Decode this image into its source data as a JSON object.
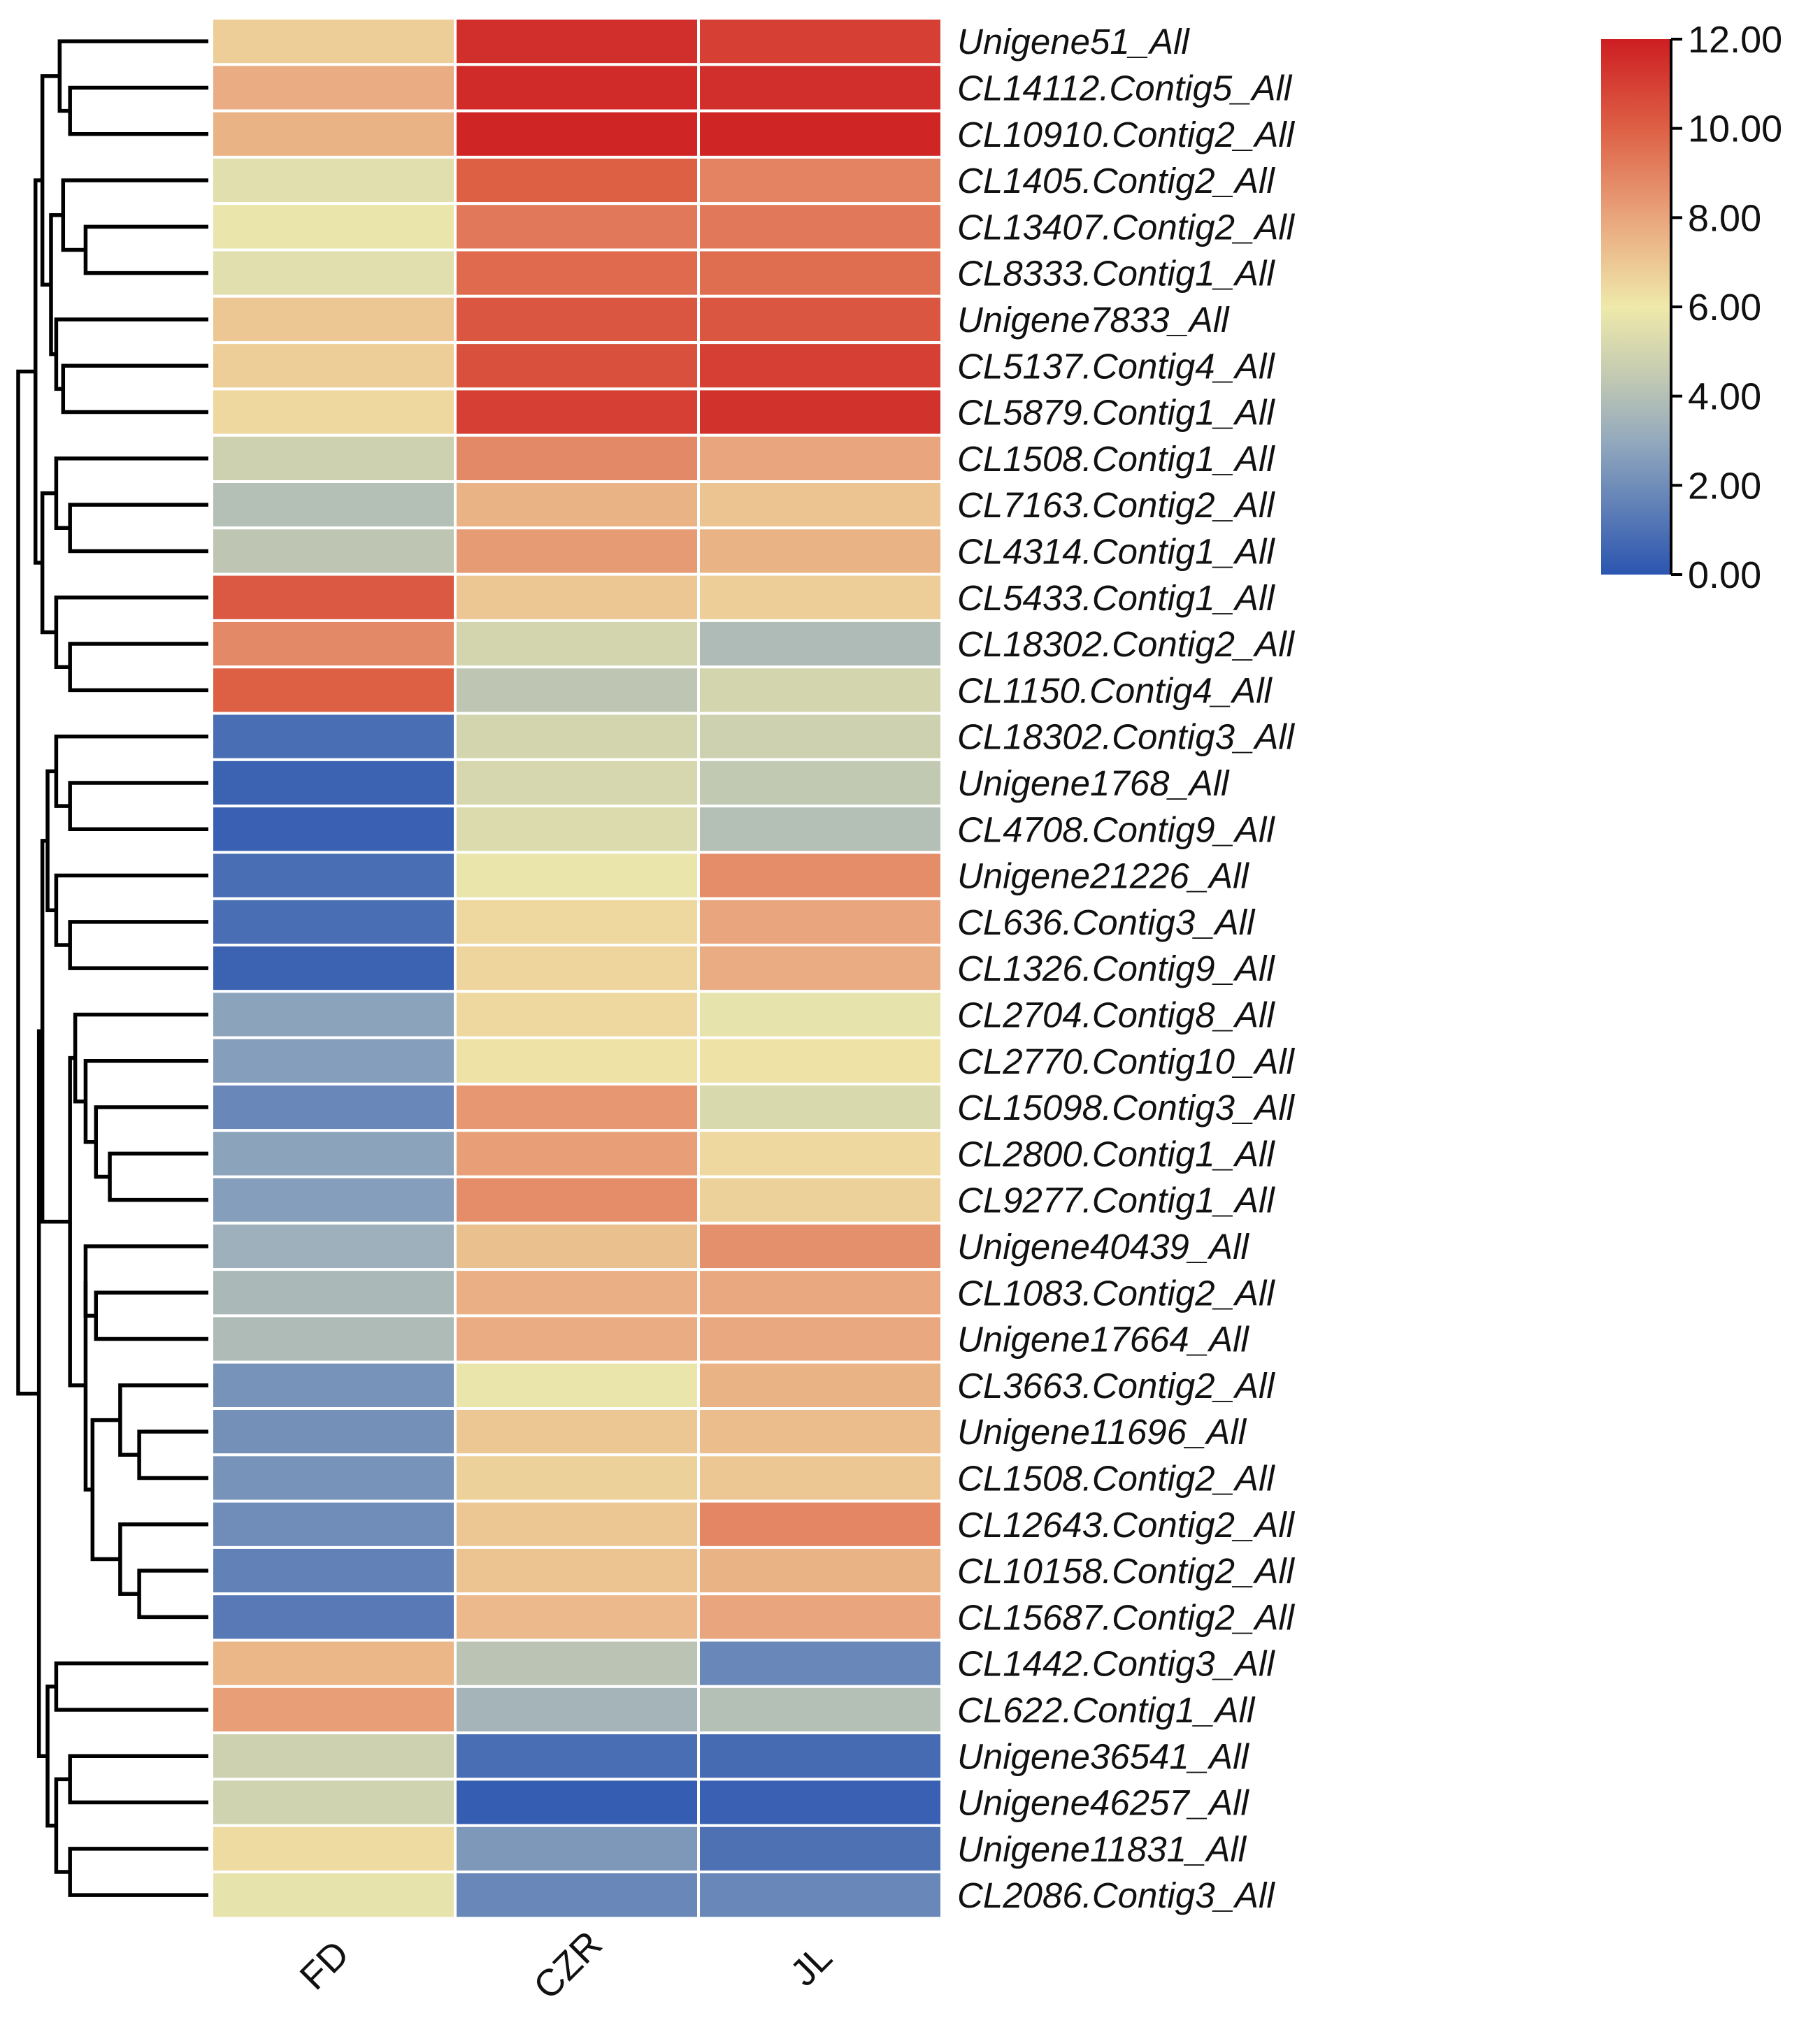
{
  "chart_data": {
    "type": "heatmap",
    "title": "",
    "columns": [
      "FD",
      "CZR",
      "JL"
    ],
    "rows": [
      "Unigene51_All",
      "CL14112.Contig5_All",
      "CL10910.Contig2_All",
      "CL1405.Contig2_All",
      "CL13407.Contig2_All",
      "CL8333.Contig1_All",
      "Unigene7833_All",
      "CL5137.Contig4_All",
      "CL5879.Contig1_All",
      "CL1508.Contig1_All",
      "CL7163.Contig2_All",
      "CL4314.Contig1_All",
      "CL5433.Contig1_All",
      "CL18302.Contig2_All",
      "CL1150.Contig4_All",
      "CL18302.Contig3_All",
      "Unigene1768_All",
      "CL4708.Contig9_All",
      "Unigene21226_All",
      "CL636.Contig3_All",
      "CL1326.Contig9_All",
      "CL2704.Contig8_All",
      "CL2770.Contig10_All",
      "CL15098.Contig3_All",
      "CL2800.Contig1_All",
      "CL9277.Contig1_All",
      "Unigene40439_All",
      "CL1083.Contig2_All",
      "Unigene17664_All",
      "CL3663.Contig2_All",
      "Unigene11696_All",
      "CL1508.Contig2_All",
      "CL12643.Contig2_All",
      "CL10158.Contig2_All",
      "CL15687.Contig2_All",
      "CL1442.Contig3_All",
      "CL622.Contig1_All",
      "Unigene36541_All",
      "Unigene46257_All",
      "Unigene11831_All",
      "CL2086.Contig3_All"
    ],
    "values": [
      [
        6.8,
        11.5,
        11.0
      ],
      [
        7.8,
        11.6,
        11.5
      ],
      [
        7.6,
        11.8,
        11.8
      ],
      [
        5.5,
        10.0,
        9.0
      ],
      [
        5.8,
        9.3,
        9.3
      ],
      [
        5.5,
        9.7,
        9.6
      ],
      [
        7.0,
        10.3,
        10.3
      ],
      [
        6.8,
        10.5,
        11.0
      ],
      [
        6.5,
        11.0,
        11.4
      ],
      [
        4.8,
        8.8,
        8.0
      ],
      [
        4.0,
        7.6,
        7.1
      ],
      [
        4.3,
        8.3,
        7.6
      ],
      [
        10.2,
        7.0,
        6.8
      ],
      [
        8.8,
        5.0,
        3.8
      ],
      [
        10.0,
        4.3,
        5.0
      ],
      [
        0.9,
        5.0,
        4.8
      ],
      [
        0.5,
        5.1,
        4.4
      ],
      [
        0.4,
        5.3,
        4.0
      ],
      [
        0.9,
        5.8,
        8.7
      ],
      [
        0.9,
        6.5,
        8.0
      ],
      [
        0.5,
        6.6,
        7.8
      ],
      [
        2.8,
        6.5,
        5.7
      ],
      [
        2.6,
        6.2,
        6.2
      ],
      [
        1.8,
        8.4,
        5.2
      ],
      [
        2.8,
        8.2,
        6.5
      ],
      [
        2.6,
        8.7,
        6.7
      ],
      [
        3.3,
        7.2,
        8.6
      ],
      [
        3.7,
        7.7,
        7.9
      ],
      [
        3.8,
        7.8,
        7.9
      ],
      [
        2.2,
        5.8,
        7.6
      ],
      [
        2.1,
        7.0,
        7.3
      ],
      [
        2.2,
        6.7,
        7.0
      ],
      [
        2.0,
        7.0,
        8.9
      ],
      [
        1.6,
        7.1,
        7.6
      ],
      [
        1.3,
        7.4,
        8.0
      ],
      [
        7.5,
        4.2,
        1.8
      ],
      [
        8.2,
        3.5,
        4.0
      ],
      [
        4.8,
        0.9,
        0.8
      ],
      [
        4.9,
        0.3,
        0.4
      ],
      [
        6.4,
        2.4,
        1.0
      ],
      [
        5.7,
        1.8,
        1.8
      ]
    ],
    "colorbar": {
      "min": 0,
      "max": 12,
      "ticks": [
        "12.00",
        "10.00",
        "8.00",
        "6.00",
        "4.00",
        "2.00",
        "0.00"
      ],
      "stops": [
        {
          "value": 0,
          "color": "#2b55b0"
        },
        {
          "value": 3,
          "color": "#93a9bd"
        },
        {
          "value": 4.5,
          "color": "#c5cbb2"
        },
        {
          "value": 6,
          "color": "#efe9aa"
        },
        {
          "value": 8,
          "color": "#e9a57d"
        },
        {
          "value": 10,
          "color": "#dd6045"
        },
        {
          "value": 12,
          "color": "#cd1e22"
        }
      ]
    },
    "dendrogram": {
      "order": [
        0,
        1,
        2,
        3,
        4,
        5,
        6,
        7,
        8,
        9,
        10,
        11,
        12,
        13,
        14,
        15,
        16,
        17,
        18,
        19,
        20,
        21,
        22,
        23,
        24,
        25,
        26,
        27,
        28,
        29,
        30,
        31,
        32,
        33,
        34,
        35,
        36,
        37,
        38,
        39,
        40
      ],
      "merges": [
        [
          1,
          2,
          0.8
        ],
        [
          0,
          "m0",
          0.86
        ],
        [
          4,
          5,
          0.71
        ],
        [
          3,
          "m2",
          0.84
        ],
        [
          7,
          8,
          0.84
        ],
        [
          6,
          "m4",
          0.88
        ],
        [
          "m3",
          "m5",
          0.91
        ],
        [
          "m1",
          "m6",
          0.96
        ],
        [
          10,
          11,
          0.8
        ],
        [
          9,
          "m8",
          0.88
        ],
        [
          13,
          14,
          0.8
        ],
        [
          12,
          "m10",
          0.88
        ],
        [
          "m9",
          "m11",
          0.96
        ],
        [
          "m7",
          "m12",
          1.0
        ],
        [
          16,
          17,
          0.8
        ],
        [
          15,
          "m14",
          0.88
        ],
        [
          19,
          20,
          0.8
        ],
        [
          18,
          "m16",
          0.88
        ],
        [
          "m15",
          "m17",
          0.93
        ],
        [
          24,
          25,
          0.57
        ],
        [
          23,
          "m19",
          0.65
        ],
        [
          22,
          "m20",
          0.71
        ],
        [
          21,
          "m21",
          0.77
        ],
        [
          27,
          28,
          0.65
        ],
        [
          26,
          "m23",
          0.71
        ],
        [
          30,
          31,
          0.4
        ],
        [
          29,
          "m25",
          0.51
        ],
        [
          33,
          34,
          0.4
        ],
        [
          32,
          "m27",
          0.51
        ],
        [
          "m26",
          "m28",
          0.67
        ],
        [
          "m24",
          "m29",
          0.71
        ],
        [
          "m22",
          "m30",
          0.8
        ],
        [
          "m18",
          "m31",
          0.96
        ],
        [
          35,
          36,
          0.88
        ],
        [
          37,
          38,
          0.8
        ],
        [
          39,
          40,
          0.8
        ],
        [
          "m34",
          "m35",
          0.88
        ],
        [
          "m33",
          "m36",
          0.93
        ],
        [
          "m32",
          "m37",
          0.98
        ],
        [
          "m13",
          "m38",
          1.1
        ]
      ]
    },
    "xlabel": "",
    "ylabel": ""
  }
}
